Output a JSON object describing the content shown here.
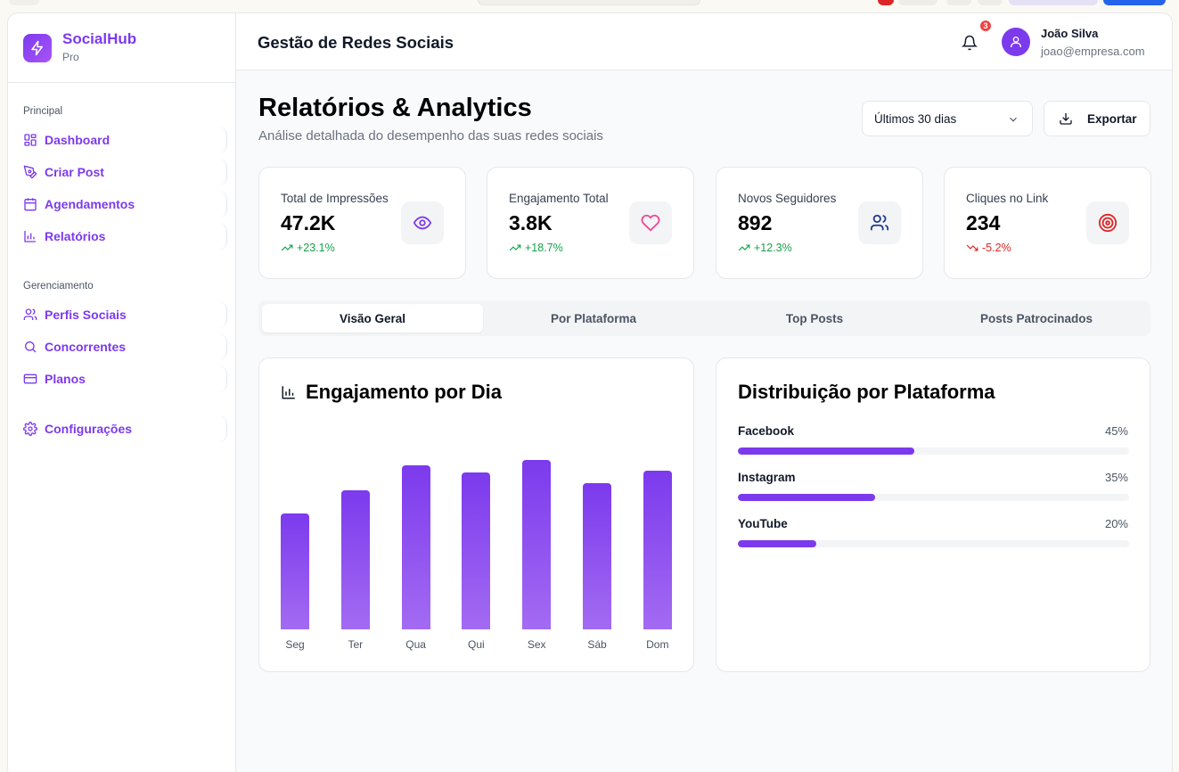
{
  "app": {
    "name": "SocialHub",
    "plan": "Pro"
  },
  "sidebar": {
    "sections": [
      {
        "title": "Principal",
        "items": [
          {
            "label": "Dashboard",
            "icon": "dashboard-icon"
          },
          {
            "label": "Criar Post",
            "icon": "pen-icon"
          },
          {
            "label": "Agendamentos",
            "icon": "calendar-icon"
          },
          {
            "label": "Relatórios",
            "icon": "bar-chart-icon"
          }
        ]
      },
      {
        "title": "Gerenciamento",
        "items": [
          {
            "label": "Perfis Sociais",
            "icon": "users-icon"
          },
          {
            "label": "Concorrentes",
            "icon": "search-icon"
          },
          {
            "label": "Planos",
            "icon": "credit-card-icon"
          }
        ]
      }
    ],
    "settings": {
      "label": "Configurações",
      "icon": "gear-icon"
    }
  },
  "header": {
    "title": "Gestão de Redes Sociais",
    "notifications": "3",
    "user_name": "João Silva",
    "user_email": "joao@empresa.com"
  },
  "page": {
    "title": "Relatórios & Analytics",
    "subtitle": "Análise detalhada do desempenho das suas redes sociais",
    "period": "Últimos 30 dias",
    "export_label": "Exportar"
  },
  "stats": [
    {
      "label": "Total de Impressões",
      "value": "47.2K",
      "delta": "+23.1%",
      "trend": "up",
      "icon": "eye-icon",
      "color": "#7c3aed"
    },
    {
      "label": "Engajamento Total",
      "value": "3.8K",
      "delta": "+18.7%",
      "trend": "up",
      "icon": "heart-icon",
      "color": "#ec4899"
    },
    {
      "label": "Novos Seguidores",
      "value": "892",
      "delta": "+12.3%",
      "trend": "up",
      "icon": "users-icon",
      "color": "#2563eb"
    },
    {
      "label": "Cliques no Link",
      "value": "234",
      "delta": "-5.2%",
      "trend": "down",
      "icon": "target-icon",
      "color": "#dc2626"
    }
  ],
  "tabs": [
    "Visão Geral",
    "Por Plataforma",
    "Top Posts",
    "Posts Patrocinados"
  ],
  "engagement_card": {
    "title": "Engajamento por Dia"
  },
  "platform_card": {
    "title": "Distribuição por Plataforma"
  },
  "chart_data": [
    {
      "type": "bar",
      "title": "Engajamento por Dia",
      "categories": [
        "Seg",
        "Ter",
        "Qua",
        "Qui",
        "Sex",
        "Sáb",
        "Dom"
      ],
      "values": [
        65,
        78,
        92,
        88,
        95,
        82,
        89
      ],
      "ylim": [
        0,
        95
      ]
    },
    {
      "type": "bar",
      "title": "Distribuição por Plataforma",
      "categories": [
        "Facebook",
        "Instagram",
        "YouTube"
      ],
      "values": [
        45,
        35,
        20
      ],
      "labels": [
        "45%",
        "35%",
        "20%"
      ],
      "ylim": [
        0,
        100
      ]
    }
  ],
  "colors": {
    "accent": "#7c3aed",
    "positive": "#16a34a",
    "negative": "#dc2626"
  }
}
